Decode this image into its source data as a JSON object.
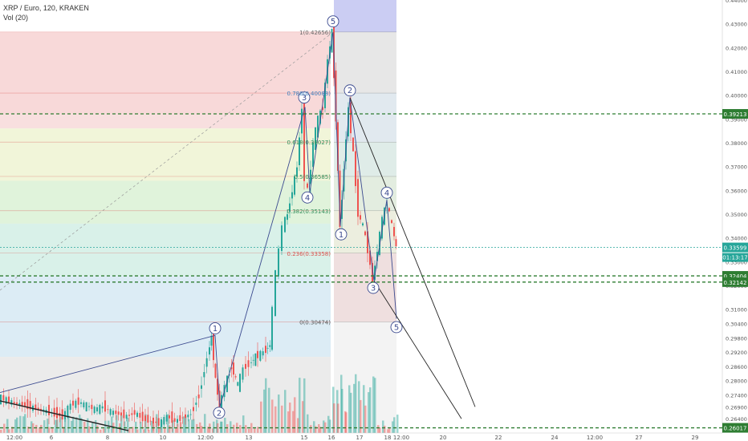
{
  "header": {
    "symbol_line": "XRP / Euro, 120, KRAKEN",
    "indicator_line": "Vol (20)"
  },
  "colors": {
    "up": "#26a69a",
    "down": "#ef5350",
    "wave": "#3b4a8f",
    "dashed_green": "#2e7d32",
    "price_tag": "#26a69a"
  },
  "chart_data": {
    "type": "candlestick",
    "title": "XRP / Euro, 120, KRAKEN",
    "xlabel": "",
    "ylabel": "",
    "ylim": [
      0.258,
      0.44
    ],
    "y_ticks": [
      "0.44000",
      "0.43000",
      "0.42000",
      "0.41000",
      "0.40000",
      "0.39000",
      "0.38000",
      "0.37000",
      "0.36000",
      "0.35000",
      "0.34000",
      "0.33000",
      "0.32000",
      "0.31000",
      "0.30400",
      "0.29800",
      "0.29200",
      "0.28600",
      "0.28000",
      "0.27400",
      "0.26900",
      "0.26400",
      "0.26000"
    ],
    "x_ticks": [
      "12:00",
      "6",
      "8",
      "10",
      "12:00",
      "13",
      "15",
      "16",
      "17",
      "18",
      "12:00",
      "20",
      "22",
      "24",
      "12:00",
      "27",
      "29"
    ],
    "current_price": "0.33599",
    "countdown": "01:13:17",
    "horizontal_levels": [
      {
        "label": "0.39213",
        "value": 0.39213
      },
      {
        "label": "0.32404",
        "value": 0.32404
      },
      {
        "label": "0.32142",
        "value": 0.32142
      },
      {
        "label": "0.26017",
        "value": 0.26017
      }
    ],
    "fib_levels": [
      {
        "label": "1(0.42656)",
        "value": 0.42656
      },
      {
        "label": "0.786(0.40088)",
        "value": 0.40088
      },
      {
        "label": "0.618(0.38027)",
        "value": 0.38027
      },
      {
        "label": "0.5(0.36585)",
        "value": 0.36585
      },
      {
        "label": "0.382(0.35143)",
        "value": 0.35143
      },
      {
        "label": "0.236(0.33358)",
        "value": 0.33358
      },
      {
        "label": "0(0.30474)",
        "value": 0.30474
      }
    ],
    "wave_labels_first": [
      "1",
      "2",
      "3",
      "4",
      "5"
    ],
    "wave_labels_second": [
      "1",
      "2",
      "3",
      "4",
      "5"
    ],
    "price_path": [
      [
        0,
        0.273
      ],
      [
        10,
        0.272
      ],
      [
        20,
        0.2705
      ],
      [
        30,
        0.27
      ],
      [
        40,
        0.269
      ],
      [
        50,
        0.268
      ],
      [
        60,
        0.2672
      ],
      [
        70,
        0.266
      ],
      [
        80,
        0.265
      ],
      [
        90,
        0.27
      ],
      [
        100,
        0.271
      ],
      [
        110,
        0.2695
      ],
      [
        120,
        0.268
      ],
      [
        130,
        0.269
      ],
      [
        140,
        0.267
      ],
      [
        150,
        0.266
      ],
      [
        160,
        0.265
      ],
      [
        170,
        0.2665
      ],
      [
        180,
        0.264
      ],
      [
        190,
        0.263
      ],
      [
        200,
        0.262
      ],
      [
        210,
        0.265
      ],
      [
        220,
        0.263
      ],
      [
        230,
        0.2645
      ],
      [
        240,
        0.266
      ],
      [
        250,
        0.274
      ],
      [
        260,
        0.29
      ],
      [
        265,
        0.299
      ],
      [
        270,
        0.28
      ],
      [
        275,
        0.269
      ],
      [
        282,
        0.278
      ],
      [
        290,
        0.286
      ],
      [
        298,
        0.278
      ],
      [
        305,
        0.285
      ],
      [
        312,
        0.287
      ],
      [
        320,
        0.29
      ],
      [
        330,
        0.292
      ],
      [
        338,
        0.295
      ],
      [
        342,
        0.31
      ],
      [
        346,
        0.325
      ],
      [
        350,
        0.335
      ],
      [
        354,
        0.345
      ],
      [
        360,
        0.35
      ],
      [
        366,
        0.36
      ],
      [
        372,
        0.37
      ],
      [
        378,
        0.395
      ],
      [
        382,
        0.365
      ],
      [
        386,
        0.36
      ],
      [
        392,
        0.38
      ],
      [
        398,
        0.39
      ],
      [
        404,
        0.395
      ],
      [
        410,
        0.415
      ],
      [
        415,
        0.4265
      ],
      [
        420,
        0.39
      ],
      [
        425,
        0.345
      ],
      [
        430,
        0.37
      ],
      [
        436,
        0.395
      ],
      [
        442,
        0.375
      ],
      [
        448,
        0.35
      ],
      [
        454,
        0.345
      ],
      [
        460,
        0.335
      ],
      [
        466,
        0.322
      ],
      [
        472,
        0.335
      ],
      [
        478,
        0.348
      ],
      [
        484,
        0.355
      ],
      [
        490,
        0.345
      ],
      [
        495,
        0.336
      ]
    ],
    "volume_max": 1.0
  }
}
